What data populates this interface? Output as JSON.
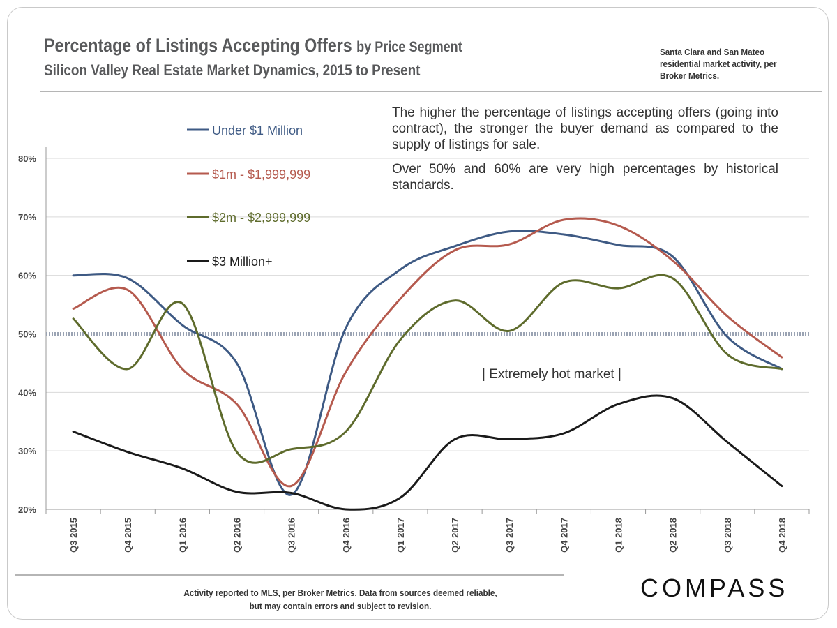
{
  "header": {
    "title": "Percentage of Listings Accepting Offers",
    "title_suffix": "by Price Segment",
    "subtitle": "Silicon Valley Real Estate Market Dynamics, 2015 to Present",
    "source_note": "Santa Clara and San Mateo residential market activity, per Broker Metrics."
  },
  "description": {
    "para1": "The higher the percentage of listings accepting offers (going into contract), the stronger the buyer demand as compared to the supply of listings for sale.",
    "para2": "Over 50% and 60% are very high percentages by historical standards."
  },
  "footer": {
    "note": "Activity reported to MLS, per Broker Metrics. Data from sources deemed reliable, but may contain errors and subject to revision.",
    "logo": "COMPASS"
  },
  "chart_data": {
    "type": "line",
    "title": "",
    "xlabel": "",
    "ylabel": "",
    "categories": [
      "Q3 2015",
      "Q4 2015",
      "Q1 2016",
      "Q2 2016",
      "Q3 2016",
      "Q4 2016",
      "Q1 2017",
      "Q2 2017",
      "Q3 2017",
      "Q4 2017",
      "Q1 2018",
      "Q2 2018",
      "Q3 2018",
      "Q4 2018"
    ],
    "ylim": [
      20,
      80
    ],
    "yticks": [
      20,
      30,
      40,
      50,
      60,
      70,
      80
    ],
    "ytick_labels": [
      "20%",
      "30%",
      "40%",
      "50%",
      "60%",
      "70%",
      "80%"
    ],
    "grid": true,
    "legend_position": "top-left",
    "reference_line": {
      "value": 50,
      "style": "dotted"
    },
    "annotation": "| Extremely hot market |",
    "series": [
      {
        "name": "Under $1 Million",
        "color": "#3e5a84",
        "values": [
          60,
          59.5,
          51.5,
          45,
          22.5,
          51,
          61,
          65,
          67.5,
          67,
          65.2,
          63.2,
          49.5,
          44
        ]
      },
      {
        "name": "$1m - $1,999,999",
        "color": "#b55a4e",
        "values": [
          54.3,
          57.5,
          44,
          38,
          24,
          43.5,
          56,
          64.3,
          65.3,
          69.5,
          68.5,
          62.5,
          53,
          46
        ]
      },
      {
        "name": "$2m - $2,999,999",
        "color": "#5e6b2c",
        "values": [
          52.6,
          44,
          55.2,
          29.8,
          30.3,
          33.3,
          49,
          55.7,
          50.5,
          58.8,
          57.8,
          59.5,
          46.5,
          44
        ]
      },
      {
        "name": "$3 Million+",
        "color": "#1a1a1a",
        "values": [
          33.3,
          29.8,
          27,
          23,
          22.8,
          20,
          22,
          32,
          32,
          33,
          38,
          39,
          31.5,
          24
        ]
      }
    ]
  }
}
